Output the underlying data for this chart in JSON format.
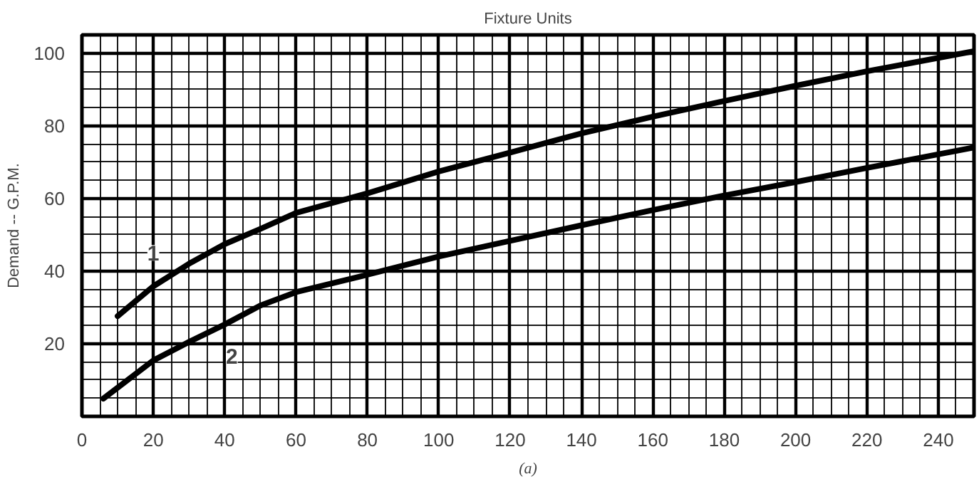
{
  "chart_data": {
    "type": "line",
    "title": "Fixture Units",
    "ylabel": "Demand -- G.P.M.",
    "annotations": [
      {
        "text": "1",
        "x": 20,
        "y": 45
      },
      {
        "text": "2",
        "x": 42,
        "y": 16.7
      },
      "(a)"
    ],
    "series": [
      {
        "color": "#000000",
        "x": [
          10,
          20,
          30,
          40,
          50,
          60,
          80,
          100,
          120,
          140,
          160,
          180,
          200,
          220,
          250
        ],
        "values": [
          27.6,
          35.8,
          42,
          47.4,
          51.6,
          56,
          61.4,
          67.4,
          72.6,
          77.9,
          82.5,
          86.8,
          91,
          95,
          100.5
        ]
      },
      {
        "color": "#000000",
        "x": [
          6,
          20,
          30,
          40,
          50,
          60,
          80,
          100,
          120,
          140,
          160,
          180,
          200,
          220,
          250
        ],
        "values": [
          4.9,
          15.4,
          20.5,
          25.3,
          30.5,
          34.2,
          39,
          44,
          48.3,
          52.6,
          56.8,
          60.8,
          64.5,
          68.4,
          74
        ]
      }
    ],
    "xlim": [
      0,
      250
    ],
    "ylim": [
      0,
      105
    ],
    "xticks": [
      0,
      20,
      40,
      60,
      80,
      100,
      120,
      140,
      160,
      180,
      200,
      220,
      240
    ],
    "yticks": [
      20,
      40,
      60,
      80,
      100
    ],
    "grid": true,
    "line_style": "solid"
  }
}
